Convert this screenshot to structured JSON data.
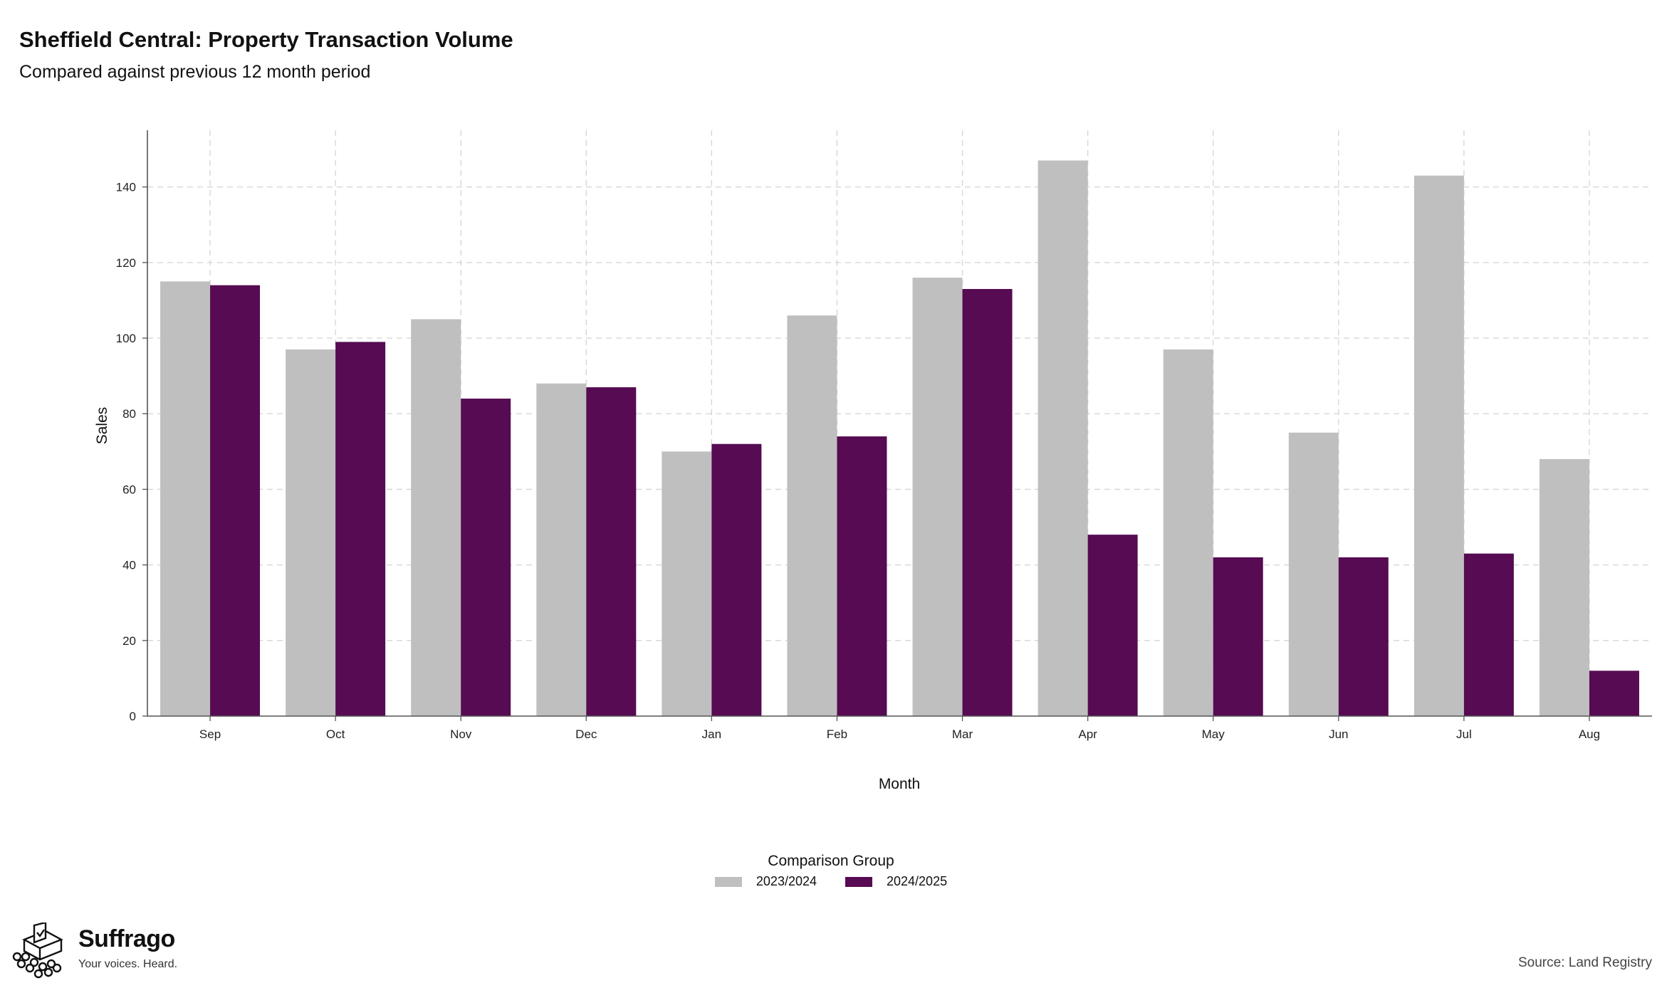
{
  "title": "Sheffield Central: Property Transaction Volume",
  "subtitle": "Compared against previous 12 month period",
  "legend": {
    "title": "Comparison Group",
    "items": [
      {
        "label": "2023/2024",
        "color": "#bfbfbf"
      },
      {
        "label": "2024/2025",
        "color": "#560b53"
      }
    ]
  },
  "brand": {
    "name": "Suffrago",
    "tagline": "Your voices. Heard."
  },
  "source": "Source: Land Registry",
  "chart_data": {
    "type": "bar",
    "xlabel": "Month",
    "ylabel": "Sales",
    "categories": [
      "Sep",
      "Oct",
      "Nov",
      "Dec",
      "Jan",
      "Feb",
      "Mar",
      "Apr",
      "May",
      "Jun",
      "Jul",
      "Aug"
    ],
    "series": [
      {
        "name": "2023/2024",
        "color": "#bfbfbf",
        "values": [
          115,
          97,
          105,
          88,
          70,
          106,
          116,
          147,
          97,
          75,
          143,
          68
        ]
      },
      {
        "name": "2024/2025",
        "color": "#560b53",
        "values": [
          114,
          99,
          84,
          87,
          72,
          74,
          113,
          48,
          42,
          42,
          43,
          12
        ]
      }
    ],
    "ylim": [
      0,
      155
    ],
    "yticks": [
      0,
      20,
      40,
      60,
      80,
      100,
      120,
      140
    ],
    "grid": true,
    "legend_position": "bottom"
  }
}
